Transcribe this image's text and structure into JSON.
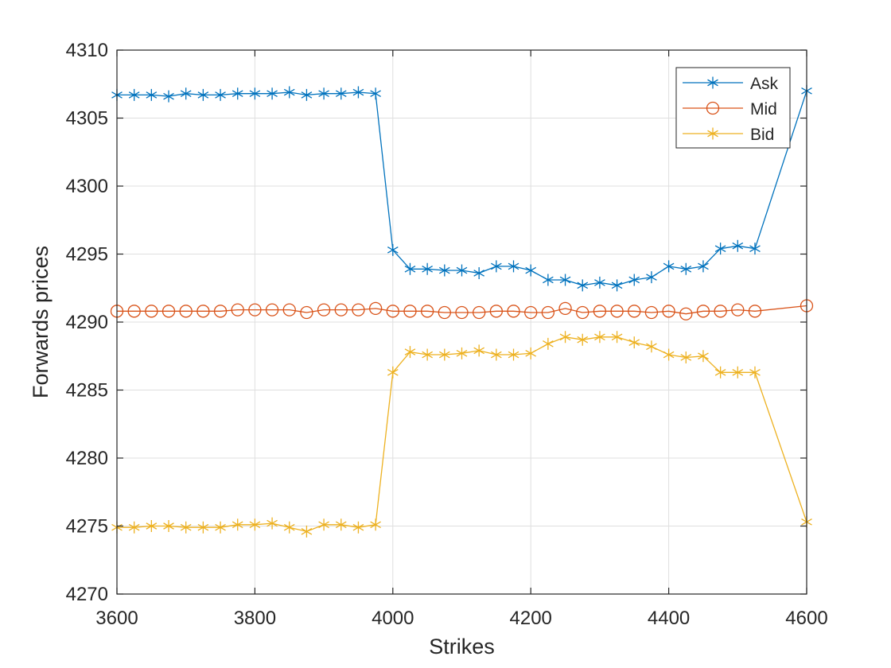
{
  "chart_data": {
    "type": "line",
    "title": "",
    "xlabel": "Strikes",
    "ylabel": "Forwards prices",
    "xlim": [
      3600,
      4600
    ],
    "ylim": [
      4270,
      4310
    ],
    "xticks": [
      3600,
      3800,
      4000,
      4200,
      4400,
      4600
    ],
    "yticks": [
      4270,
      4275,
      4280,
      4285,
      4290,
      4295,
      4300,
      4305,
      4310
    ],
    "grid": true,
    "legend_position": "top-right",
    "x": [
      3600,
      3625,
      3650,
      3675,
      3700,
      3725,
      3750,
      3775,
      3800,
      3825,
      3850,
      3875,
      3900,
      3925,
      3950,
      3975,
      4000,
      4025,
      4050,
      4075,
      4100,
      4125,
      4150,
      4175,
      4200,
      4225,
      4250,
      4275,
      4300,
      4325,
      4350,
      4375,
      4400,
      4425,
      4450,
      4475,
      4500,
      4525,
      4600
    ],
    "series": [
      {
        "name": "Ask",
        "color": "#0072BD",
        "marker": "asterisk",
        "values": [
          4306.7,
          4306.7,
          4306.7,
          4306.6,
          4306.8,
          4306.7,
          4306.7,
          4306.8,
          4306.8,
          4306.8,
          4306.9,
          4306.7,
          4306.8,
          4306.8,
          4306.9,
          4306.8,
          4295.3,
          4293.9,
          4293.9,
          4293.8,
          4293.8,
          4293.6,
          4294.1,
          4294.1,
          4293.8,
          4293.1,
          4293.1,
          4292.7,
          4292.9,
          4292.7,
          4293.1,
          4293.3,
          4294.1,
          4293.9,
          4294.1,
          4295.4,
          4295.6,
          4295.4,
          4307.0
        ]
      },
      {
        "name": "Mid",
        "color": "#D95319",
        "marker": "circle",
        "values": [
          4290.8,
          4290.8,
          4290.8,
          4290.8,
          4290.8,
          4290.8,
          4290.8,
          4290.9,
          4290.9,
          4290.9,
          4290.9,
          4290.7,
          4290.9,
          4290.9,
          4290.9,
          4291.0,
          4290.8,
          4290.8,
          4290.8,
          4290.7,
          4290.7,
          4290.7,
          4290.8,
          4290.8,
          4290.7,
          4290.7,
          4291.0,
          4290.7,
          4290.8,
          4290.8,
          4290.8,
          4290.7,
          4290.8,
          4290.6,
          4290.8,
          4290.8,
          4290.9,
          4290.8,
          4291.2
        ]
      },
      {
        "name": "Bid",
        "color": "#EDB120",
        "marker": "asterisk",
        "values": [
          4274.9,
          4274.9,
          4275.0,
          4275.0,
          4274.9,
          4274.9,
          4274.9,
          4275.1,
          4275.1,
          4275.2,
          4274.9,
          4274.6,
          4275.1,
          4275.1,
          4274.9,
          4275.1,
          4286.3,
          4287.8,
          4287.6,
          4287.6,
          4287.7,
          4287.9,
          4287.6,
          4287.6,
          4287.7,
          4288.4,
          4288.9,
          4288.7,
          4288.9,
          4288.9,
          4288.5,
          4288.2,
          4287.6,
          4287.4,
          4287.5,
          4286.3,
          4286.3,
          4286.3,
          4275.3
        ]
      }
    ]
  }
}
